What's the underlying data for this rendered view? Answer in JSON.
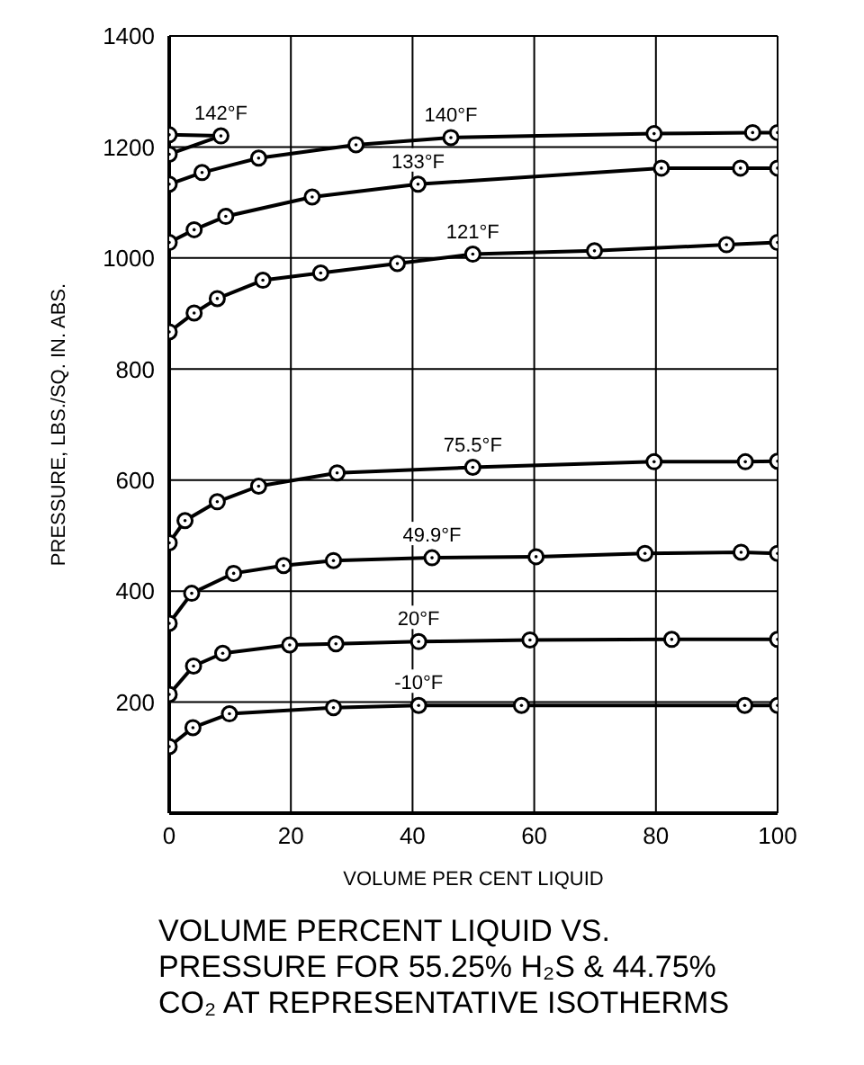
{
  "chart_data": {
    "type": "line",
    "title": "VOLUME PERCENT LIQUID VS. PRESSURE FOR 55.25% H₂S & 44.75% CO₂ AT REPRESENTATIVE ISOTHERMS",
    "xlabel": "VOLUME PER CENT LIQUID",
    "ylabel": "PRESSURE, LBS./SQ. IN. ABS.",
    "xlim": [
      0,
      100
    ],
    "xticks": [
      0,
      20,
      40,
      60,
      80,
      100
    ],
    "ylim": [
      0,
      1400
    ],
    "yticks": [
      200,
      400,
      600,
      800,
      1000,
      1200,
      1400
    ],
    "grid": true,
    "legend": false,
    "marker": "circle",
    "line_style": "solid",
    "series": [
      {
        "name": "142°F",
        "color": "#000000",
        "x": [
          0,
          8.5,
          0
        ],
        "values": [
          1222,
          1220,
          1187
        ]
      },
      {
        "name": "140°F",
        "color": "#000000",
        "x": [
          0,
          5.4,
          14.7,
          30.7,
          46.3,
          79.7,
          95.9,
          100
        ],
        "values": [
          1133,
          1154,
          1180,
          1204,
          1217,
          1224,
          1226,
          1226
        ]
      },
      {
        "name": "133°F",
        "color": "#000000",
        "x": [
          0,
          4.1,
          9.3,
          23.5,
          40.9,
          80.9,
          93.9,
          100
        ],
        "values": [
          1028,
          1051,
          1075,
          1110,
          1133,
          1162,
          1162,
          1162
        ]
      },
      {
        "name": "121°F",
        "color": "#000000",
        "x": [
          0,
          4.1,
          7.9,
          15.4,
          24.9,
          37.5,
          49.9,
          69.9,
          91.6,
          100
        ],
        "values": [
          867,
          901,
          927,
          960,
          973,
          990,
          1007,
          1013,
          1024,
          1028
        ]
      },
      {
        "name": "75.5°F",
        "color": "#000000",
        "x": [
          0,
          2.6,
          7.9,
          14.7,
          27.6,
          49.9,
          79.7,
          94.7,
          100
        ],
        "values": [
          487,
          527,
          561,
          589,
          613,
          623,
          633,
          633,
          634
        ]
      },
      {
        "name": "49.9°F",
        "color": "#000000",
        "x": [
          0,
          3.7,
          10.6,
          18.8,
          27,
          43.2,
          60.3,
          78.2,
          94,
          100
        ],
        "values": [
          342,
          396,
          432,
          446,
          455,
          460,
          462,
          468,
          470,
          468
        ]
      },
      {
        "name": "20°F",
        "color": "#000000",
        "x": [
          0,
          4,
          8.8,
          19.8,
          27.4,
          41,
          59.3,
          82.6,
          100
        ],
        "values": [
          214,
          265,
          288,
          303,
          305,
          309,
          312,
          313,
          313
        ]
      },
      {
        "name": "-10°F",
        "color": "#000000",
        "x": [
          0,
          3.9,
          9.9,
          27,
          41,
          57.9,
          94.6,
          100
        ],
        "values": [
          120,
          154,
          179,
          190,
          194,
          194,
          194,
          194
        ]
      }
    ]
  }
}
